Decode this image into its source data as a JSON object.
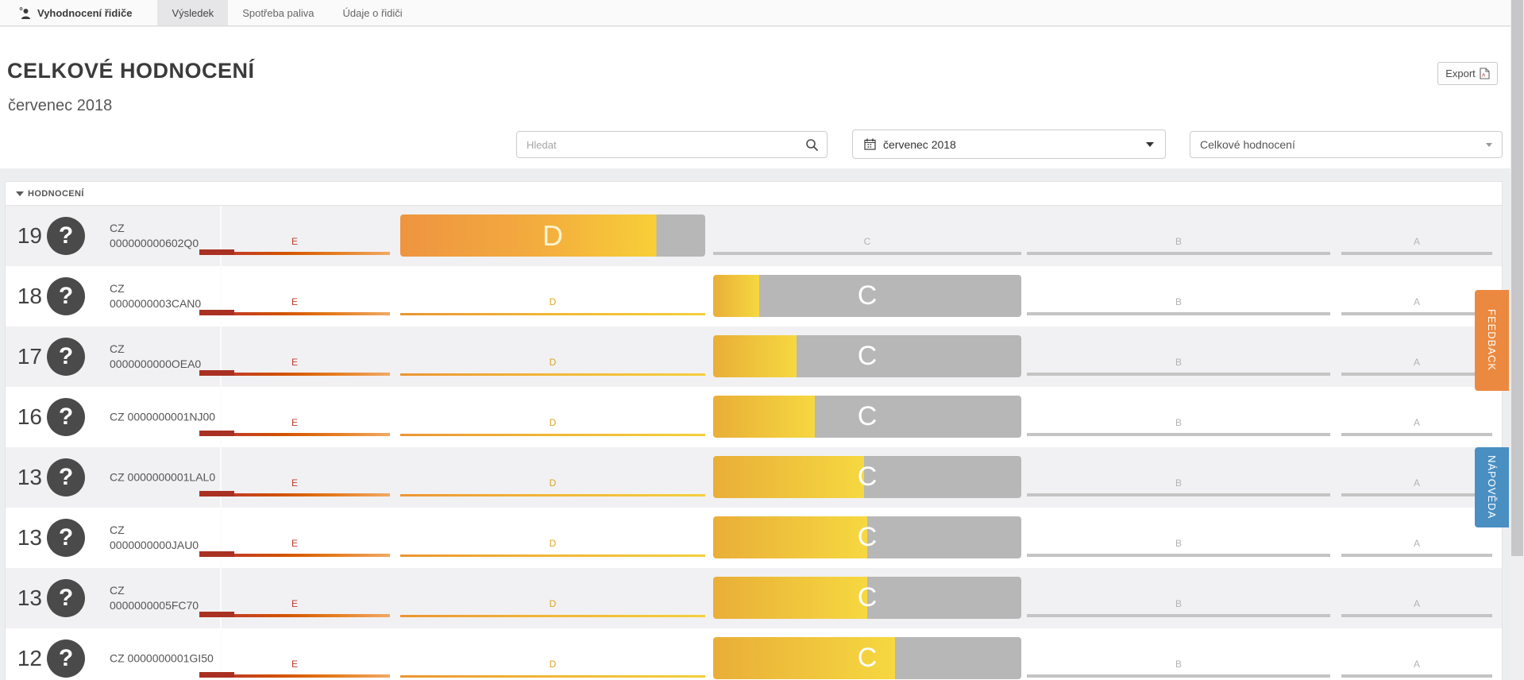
{
  "topbar": {
    "app_title": "Vyhodnocení řidiče",
    "tabs": [
      {
        "label": "Výsledek",
        "active": true
      },
      {
        "label": "Spotřeba paliva",
        "active": false
      },
      {
        "label": "Údaje o řidiči",
        "active": false
      }
    ]
  },
  "header": {
    "title": "CELKOVÉ HODNOCENÍ",
    "subtitle": "červenec 2018",
    "export_label": "Export"
  },
  "filters": {
    "search_placeholder": "Hledat",
    "search_value": "",
    "period_value": "červenec 2018",
    "metric_value": "Celkové hodnocení"
  },
  "table": {
    "section_label": "HODNOCENÍ",
    "grades": [
      "E",
      "D",
      "C",
      "B",
      "A"
    ],
    "rows": [
      {
        "score": "19",
        "id_lines": [
          "CZ",
          "000000000602Q0"
        ],
        "grade": "D",
        "fill_pct": 84
      },
      {
        "score": "18",
        "id_lines": [
          "CZ",
          "0000000003CAN0"
        ],
        "grade": "C",
        "fill_pct": 15
      },
      {
        "score": "17",
        "id_lines": [
          "CZ",
          "0000000000OEA0"
        ],
        "grade": "C",
        "fill_pct": 27
      },
      {
        "score": "16",
        "id_lines": [
          "CZ 0000000001NJ00"
        ],
        "grade": "C",
        "fill_pct": 33
      },
      {
        "score": "13",
        "id_lines": [
          "CZ 0000000001LAL0"
        ],
        "grade": "C",
        "fill_pct": 49
      },
      {
        "score": "13",
        "id_lines": [
          "CZ",
          "0000000000JAU0"
        ],
        "grade": "C",
        "fill_pct": 50
      },
      {
        "score": "13",
        "id_lines": [
          "CZ",
          "0000000005FC70"
        ],
        "grade": "C",
        "fill_pct": 50
      },
      {
        "score": "12",
        "id_lines": [
          "CZ 0000000001GI50"
        ],
        "grade": "C",
        "fill_pct": 59
      }
    ],
    "avatar_glyph": "?"
  },
  "side_tabs": {
    "feedback_label": "FEEDBACK",
    "help_label": "NÁPOVĚDA"
  },
  "colors": {
    "accent_orange": "#ec8940",
    "accent_blue": "#4a8fc2",
    "bar_d_start": "#ee9440",
    "bar_d_end": "#f8cf38",
    "bar_c_start": "#e9ae38",
    "bar_c_end": "#f6d840",
    "bar_remainder": "#b7b7b7",
    "grade_e_red": "#c0392b",
    "grade_d_yellow": "#d8a621",
    "grade_gray": "#b3b3b3"
  }
}
